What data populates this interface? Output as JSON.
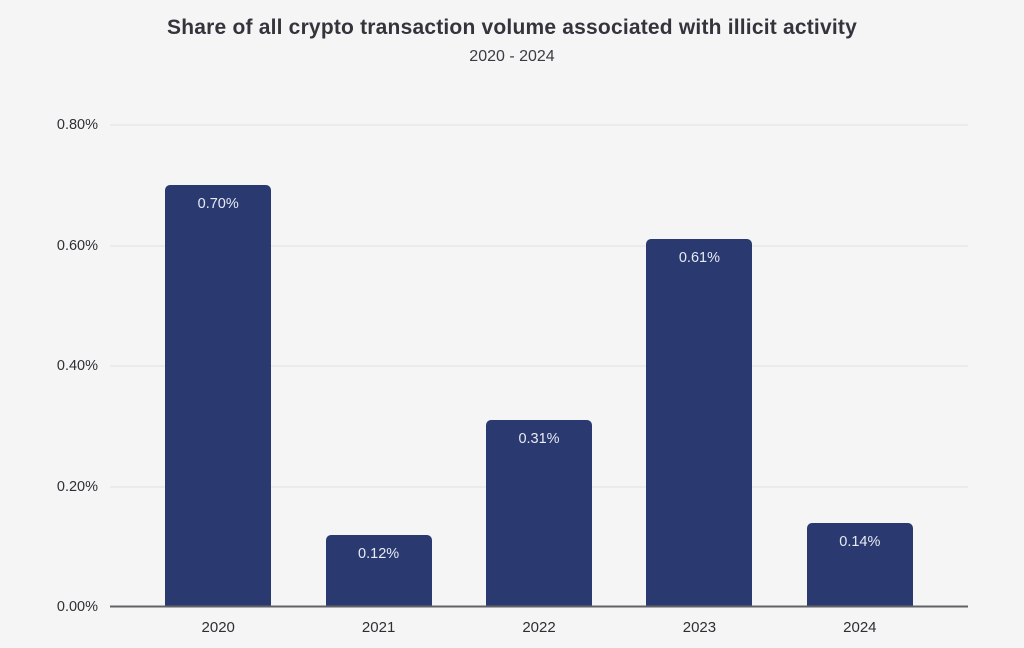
{
  "header": {
    "title": "Share of all crypto transaction volume associated with illicit activity",
    "subtitle": "2020 - 2024"
  },
  "chart_data": {
    "type": "bar",
    "title": "Share of all crypto transaction volume associated with illicit activity",
    "subtitle": "2020 - 2024",
    "categories": [
      "2020",
      "2021",
      "2022",
      "2023",
      "2024"
    ],
    "values": [
      0.7,
      0.12,
      0.31,
      0.61,
      0.14
    ],
    "bar_labels": [
      "0.70%",
      "0.12%",
      "0.31%",
      "0.61%",
      "0.14%"
    ],
    "xlabel": "",
    "ylabel": "",
    "ylim": [
      0,
      0.8
    ],
    "yticks": [
      0,
      0.2,
      0.4,
      0.6,
      0.8
    ],
    "ytick_labels": [
      "0.00%",
      "0.20%",
      "0.40%",
      "0.60%",
      "0.80%"
    ],
    "grid": true,
    "legend": false,
    "colors": {
      "background": "#f5f5f6",
      "bar": "#2a3a70",
      "bar_label": "#e8ebf4",
      "gridline": "#e1e1e3",
      "axis_line": "#616267",
      "title_text": "#34353c",
      "subtitle_text": "#3b3c42",
      "tick_text": "#2e2f33"
    }
  }
}
